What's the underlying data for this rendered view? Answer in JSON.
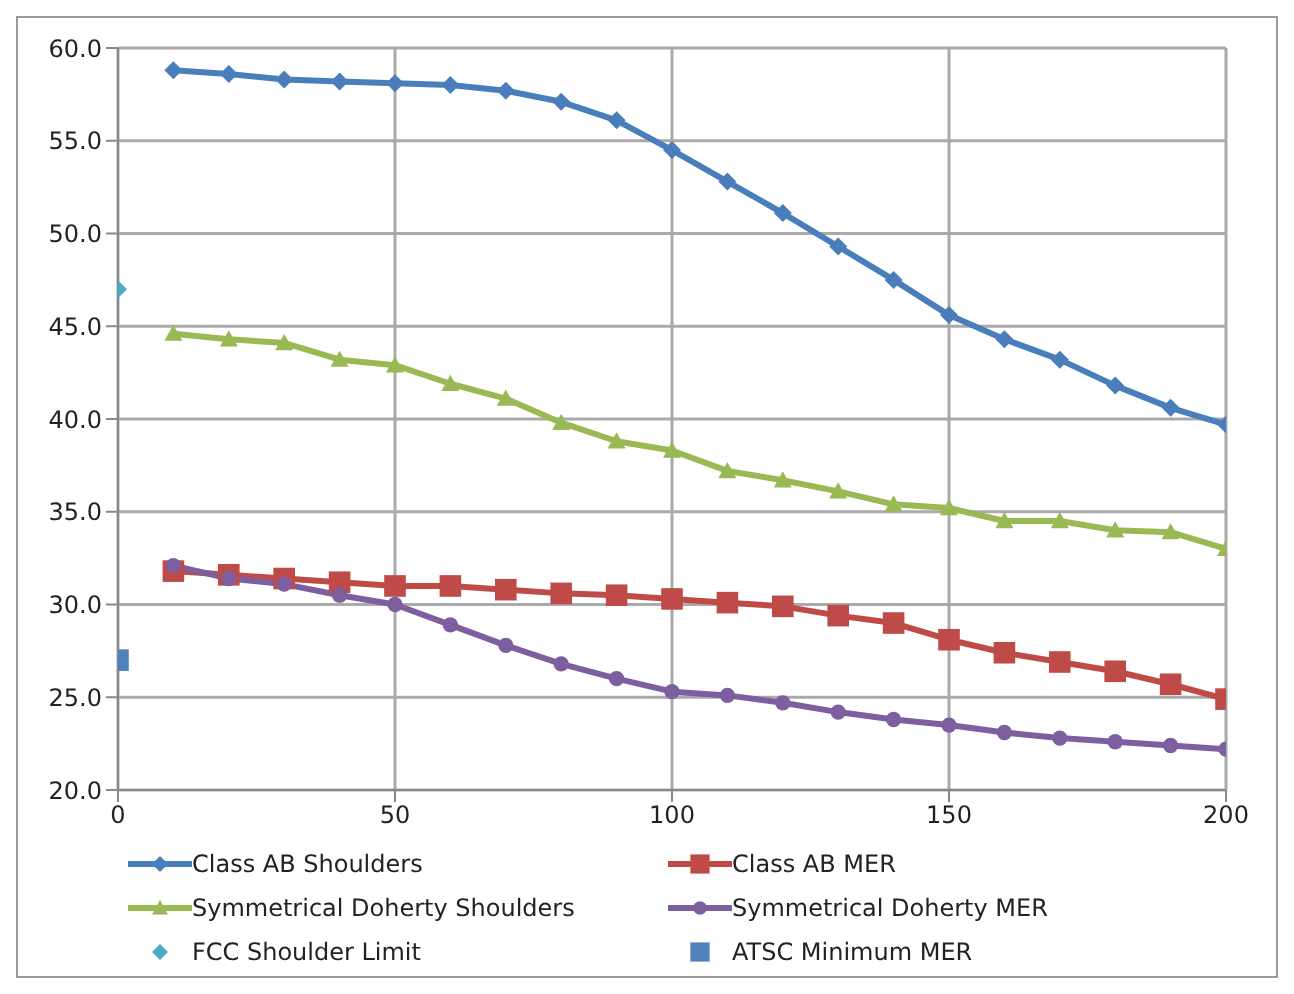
{
  "chart_data": {
    "type": "line",
    "x": [
      10,
      20,
      30,
      40,
      50,
      60,
      70,
      80,
      90,
      100,
      110,
      120,
      130,
      140,
      150,
      160,
      170,
      180,
      190,
      200
    ],
    "series": [
      {
        "name": "Class AB Shoulders",
        "color": "#4a7ebb",
        "marker": "diamond",
        "values": [
          58.8,
          58.6,
          58.3,
          58.2,
          58.1,
          58.0,
          57.7,
          57.1,
          56.1,
          54.5,
          52.8,
          51.1,
          49.3,
          47.5,
          45.6,
          44.3,
          43.2,
          41.8,
          40.6,
          39.7
        ]
      },
      {
        "name": "Class AB MER",
        "color": "#be4b48",
        "marker": "square",
        "values": [
          31.8,
          31.6,
          31.4,
          31.2,
          31.0,
          31.0,
          30.8,
          30.6,
          30.5,
          30.3,
          30.1,
          29.9,
          29.4,
          29.0,
          28.1,
          27.4,
          26.9,
          26.4,
          25.7,
          24.9
        ]
      },
      {
        "name": "Symmetrical Doherty Shoulders",
        "color": "#98b954",
        "marker": "triangle",
        "values": [
          44.6,
          44.3,
          44.1,
          43.2,
          42.9,
          41.9,
          41.1,
          39.8,
          38.8,
          38.3,
          37.2,
          36.7,
          36.1,
          35.4,
          35.2,
          34.5,
          34.5,
          34.0,
          33.9,
          33.0
        ]
      },
      {
        "name": "Symmetrical Doherty MER",
        "color": "#7d5fa0",
        "marker": "circle",
        "values": [
          32.1,
          31.4,
          31.1,
          30.5,
          30.0,
          28.9,
          27.8,
          26.8,
          26.0,
          25.3,
          25.1,
          24.7,
          24.2,
          23.8,
          23.5,
          23.1,
          22.8,
          22.6,
          22.4,
          22.2
        ]
      },
      {
        "name": "FCC Shoulder Limit",
        "type": "scatter",
        "color": "#4bacc6",
        "marker": "diamond",
        "x": [
          0
        ],
        "values": [
          47.0
        ]
      },
      {
        "name": "ATSC Minimum  MER",
        "type": "scatter",
        "color": "#4f81bd",
        "marker": "square",
        "x": [
          0
        ],
        "values": [
          27.0
        ]
      }
    ],
    "xlim": [
      0,
      200
    ],
    "xticks": [
      0,
      50,
      100,
      150,
      200
    ],
    "ylim": [
      20,
      60
    ],
    "yticks": [
      {
        "value": 20,
        "label": "20.0"
      },
      {
        "value": 25,
        "label": "25.0"
      },
      {
        "value": 30,
        "label": "30.0"
      },
      {
        "value": 35,
        "label": "35.0"
      },
      {
        "value": 40,
        "label": "40.0"
      },
      {
        "value": 45,
        "label": "45.0"
      },
      {
        "value": 50,
        "label": "50.0"
      },
      {
        "value": 55,
        "label": "55.0"
      },
      {
        "value": 60,
        "label": "60.0"
      }
    ],
    "grid": true,
    "legend": "bottom",
    "line_style": "solid"
  }
}
